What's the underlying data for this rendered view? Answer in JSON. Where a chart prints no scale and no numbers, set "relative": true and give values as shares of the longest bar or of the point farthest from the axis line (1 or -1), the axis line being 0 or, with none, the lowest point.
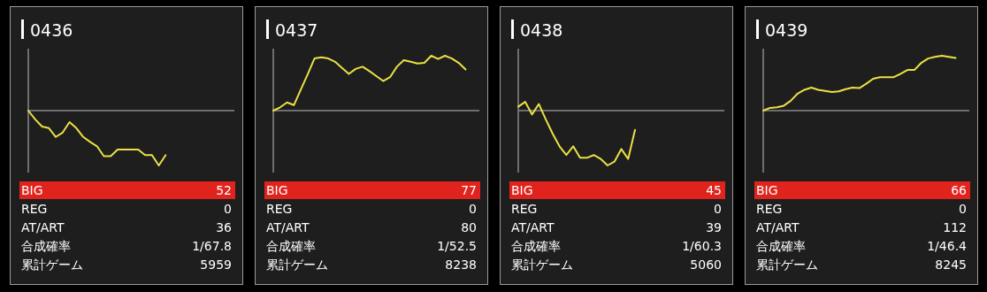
{
  "chart_data": [
    {
      "type": "line",
      "title": "0436",
      "relative": true,
      "categories": [
        null,
        null,
        null,
        null,
        null,
        null,
        null,
        null,
        null,
        null,
        null,
        null,
        null,
        null,
        null,
        null,
        null,
        null,
        null,
        null,
        null,
        null,
        null,
        null,
        null,
        null,
        null,
        null,
        null,
        null,
        null
      ],
      "series": [
        {
          "color": "#ece045",
          "values": [
            0,
            -0.16,
            -0.29,
            -0.32,
            -0.48,
            -0.4,
            -0.21,
            -0.32,
            -0.48,
            -0.57,
            -0.65,
            -0.83,
            -0.83,
            -0.71,
            -0.71,
            -0.71,
            -0.71,
            -0.81,
            -0.81,
            -1,
            -0.81,
            null,
            null,
            null,
            null,
            null,
            null,
            null,
            null,
            null,
            null
          ]
        }
      ]
    },
    {
      "type": "other",
      "categories": [
        "BIG",
        "REG",
        "AT/ART",
        "合成確率",
        "累計ゲーム"
      ],
      "value_labels": [
        "52",
        "0",
        "36",
        "1/67.8",
        "5959"
      ]
    },
    {
      "type": "line",
      "title": "0437",
      "relative": true,
      "categories": [
        null,
        null,
        null,
        null,
        null,
        null,
        null,
        null,
        null,
        null,
        null,
        null,
        null,
        null,
        null,
        null,
        null,
        null,
        null,
        null,
        null,
        null,
        null,
        null,
        null,
        null,
        null,
        null,
        null,
        null,
        null
      ],
      "series": [
        {
          "color": "#ece045",
          "values": [
            0,
            0.06,
            0.15,
            0.1,
            0.38,
            0.66,
            0.95,
            0.97,
            0.95,
            0.89,
            0.78,
            0.67,
            0.76,
            0.8,
            0.72,
            0.63,
            0.54,
            0.61,
            0.8,
            0.92,
            0.89,
            0.86,
            0.87,
            1,
            0.94,
            1,
            0.95,
            0.87,
            0.75,
            null,
            null
          ]
        }
      ]
    },
    {
      "type": "other",
      "categories": [
        "BIG",
        "REG",
        "AT/ART",
        "合成確率",
        "累計ゲーム"
      ],
      "value_labels": [
        "77",
        "0",
        "80",
        "1/52.5",
        "8238"
      ]
    },
    {
      "type": "line",
      "title": "0438",
      "relative": true,
      "categories": [
        null,
        null,
        null,
        null,
        null,
        null,
        null,
        null,
        null,
        null,
        null,
        null,
        null,
        null,
        null,
        null,
        null,
        null,
        null,
        null,
        null,
        null,
        null,
        null,
        null,
        null,
        null,
        null,
        null,
        null,
        null
      ],
      "series": [
        {
          "color": "#ece045",
          "values": [
            0.07,
            0.16,
            -0.07,
            0.12,
            -0.16,
            -0.42,
            -0.65,
            -0.81,
            -0.65,
            -0.86,
            -0.86,
            -0.81,
            -0.88,
            -1,
            -0.93,
            -0.7,
            -0.88,
            -0.35,
            null,
            null,
            null,
            null,
            null,
            null,
            null,
            null,
            null,
            null,
            null,
            null,
            null
          ]
        }
      ]
    },
    {
      "type": "other",
      "categories": [
        "BIG",
        "REG",
        "AT/ART",
        "合成確率",
        "累計ゲーム"
      ],
      "value_labels": [
        "45",
        "0",
        "39",
        "1/60.3",
        "5060"
      ]
    },
    {
      "type": "line",
      "title": "0439",
      "relative": true,
      "categories": [
        null,
        null,
        null,
        null,
        null,
        null,
        null,
        null,
        null,
        null,
        null,
        null,
        null,
        null,
        null,
        null,
        null,
        null,
        null,
        null,
        null,
        null,
        null,
        null,
        null,
        null,
        null,
        null,
        null,
        null,
        null
      ],
      "series": [
        {
          "color": "#ece045",
          "values": [
            0,
            0.05,
            0.06,
            0.09,
            0.18,
            0.31,
            0.38,
            0.42,
            0.38,
            0.36,
            0.34,
            0.35,
            0.39,
            0.42,
            0.41,
            0.49,
            0.58,
            0.61,
            0.61,
            0.61,
            0.67,
            0.74,
            0.74,
            0.87,
            0.95,
            0.98,
            1,
            0.98,
            0.96,
            null,
            null
          ]
        }
      ]
    },
    {
      "type": "other",
      "categories": [
        "BIG",
        "REG",
        "AT/ART",
        "合成確率",
        "累計ゲーム"
      ],
      "value_labels": [
        "66",
        "0",
        "112",
        "1/46.4",
        "8245"
      ]
    }
  ]
}
